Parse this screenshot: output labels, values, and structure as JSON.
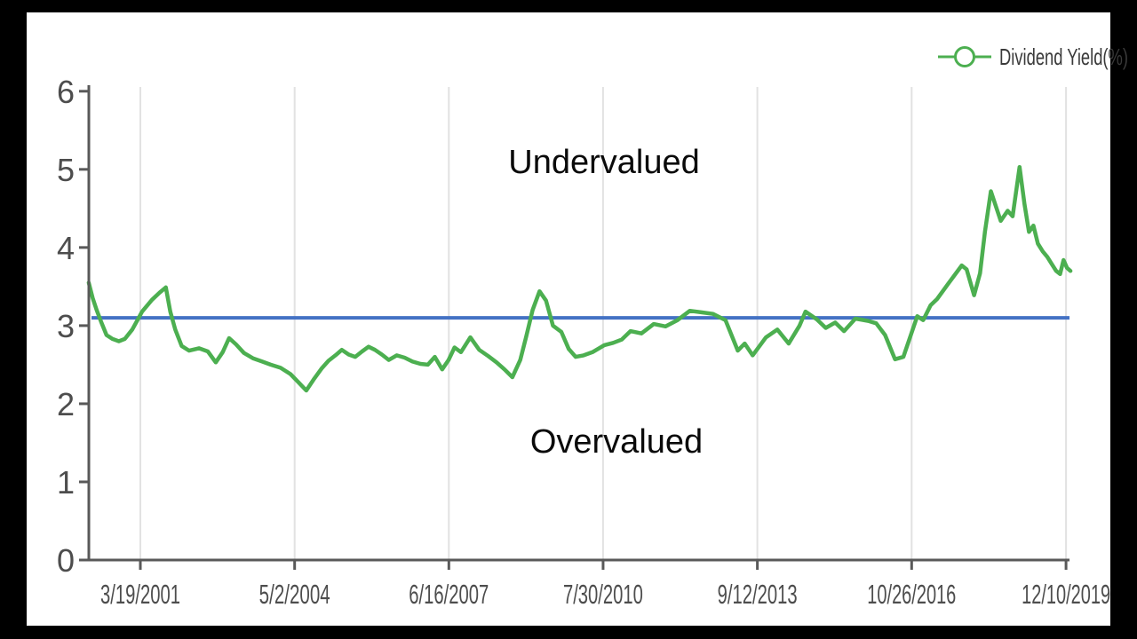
{
  "legend": {
    "label": "Dividend Yield(%)"
  },
  "chart_data": {
    "type": "line",
    "title": "",
    "xlabel": "",
    "ylabel": "",
    "grid": "vertical-only",
    "legend_position": "top-right",
    "annotations": [
      {
        "text": "Undervalued",
        "position": "above-reference-line"
      },
      {
        "text": "Overvalued",
        "position": "below-reference-line"
      }
    ],
    "reference_line": {
      "value": 3.1,
      "color": "#4472c4"
    },
    "y_axis": {
      "ticks": [
        "0",
        "1",
        "2",
        "3",
        "4",
        "5",
        "6"
      ],
      "range": [
        0,
        6
      ]
    },
    "x_axis": {
      "range_years": [
        2000.17,
        2020.03
      ],
      "ticks": [
        {
          "label": "3/19/2001",
          "year": 2001.214
        },
        {
          "label": "5/2/2004",
          "year": 2004.335
        },
        {
          "label": "6/16/2007",
          "year": 2007.455
        },
        {
          "label": "7/30/2010",
          "year": 2010.575
        },
        {
          "label": "9/12/2013",
          "year": 2013.696
        },
        {
          "label": "10/26/2016",
          "year": 2016.817
        },
        {
          "label": "12/10/2019",
          "year": 2019.94
        }
      ]
    },
    "colors": {
      "line": "#4caf50",
      "reference": "#4472c4",
      "axis": "#595959",
      "gridline": "#e2e2e2",
      "tick_text": "#4d4d4d",
      "legend_text": "#3a3a3a",
      "annotation_text": "#0a0a0a",
      "background": "#ffffff",
      "frame": "#000000"
    },
    "series": [
      {
        "name": "Dividend Yield(%)",
        "color": "#4caf50",
        "marker": "open-circle",
        "points": [
          [
            2000.17,
            3.55
          ],
          [
            2000.25,
            3.35
          ],
          [
            2000.33,
            3.2
          ],
          [
            2000.42,
            3.05
          ],
          [
            2000.53,
            2.88
          ],
          [
            2000.65,
            2.83
          ],
          [
            2000.78,
            2.8
          ],
          [
            2000.9,
            2.83
          ],
          [
            2001.05,
            2.95
          ],
          [
            2001.25,
            3.18
          ],
          [
            2001.45,
            3.33
          ],
          [
            2001.6,
            3.42
          ],
          [
            2001.73,
            3.49
          ],
          [
            2001.82,
            3.18
          ],
          [
            2001.92,
            2.95
          ],
          [
            2002.05,
            2.74
          ],
          [
            2002.2,
            2.68
          ],
          [
            2002.4,
            2.71
          ],
          [
            2002.58,
            2.67
          ],
          [
            2002.74,
            2.53
          ],
          [
            2002.88,
            2.66
          ],
          [
            2003.01,
            2.84
          ],
          [
            2003.15,
            2.76
          ],
          [
            2003.31,
            2.65
          ],
          [
            2003.5,
            2.58
          ],
          [
            2003.68,
            2.54
          ],
          [
            2003.85,
            2.5
          ],
          [
            2004.05,
            2.46
          ],
          [
            2004.25,
            2.38
          ],
          [
            2004.42,
            2.27
          ],
          [
            2004.57,
            2.17
          ],
          [
            2004.72,
            2.31
          ],
          [
            2004.88,
            2.45
          ],
          [
            2005.02,
            2.55
          ],
          [
            2005.16,
            2.62
          ],
          [
            2005.29,
            2.69
          ],
          [
            2005.43,
            2.63
          ],
          [
            2005.56,
            2.6
          ],
          [
            2005.7,
            2.67
          ],
          [
            2005.83,
            2.73
          ],
          [
            2005.96,
            2.69
          ],
          [
            2006.1,
            2.63
          ],
          [
            2006.24,
            2.56
          ],
          [
            2006.4,
            2.62
          ],
          [
            2006.56,
            2.59
          ],
          [
            2006.72,
            2.54
          ],
          [
            2006.88,
            2.51
          ],
          [
            2007.03,
            2.5
          ],
          [
            2007.17,
            2.6
          ],
          [
            2007.32,
            2.44
          ],
          [
            2007.45,
            2.56
          ],
          [
            2007.57,
            2.72
          ],
          [
            2007.7,
            2.66
          ],
          [
            2007.89,
            2.85
          ],
          [
            2008.07,
            2.69
          ],
          [
            2008.25,
            2.61
          ],
          [
            2008.42,
            2.53
          ],
          [
            2008.58,
            2.44
          ],
          [
            2008.74,
            2.34
          ],
          [
            2008.9,
            2.56
          ],
          [
            2009.02,
            2.86
          ],
          [
            2009.15,
            3.2
          ],
          [
            2009.29,
            3.44
          ],
          [
            2009.42,
            3.32
          ],
          [
            2009.56,
            3.0
          ],
          [
            2009.73,
            2.92
          ],
          [
            2009.88,
            2.7
          ],
          [
            2010.02,
            2.6
          ],
          [
            2010.18,
            2.62
          ],
          [
            2010.36,
            2.66
          ],
          [
            2010.6,
            2.75
          ],
          [
            2010.78,
            2.78
          ],
          [
            2010.95,
            2.82
          ],
          [
            2011.13,
            2.93
          ],
          [
            2011.35,
            2.9
          ],
          [
            2011.6,
            3.02
          ],
          [
            2011.84,
            2.99
          ],
          [
            2012.08,
            3.07
          ],
          [
            2012.33,
            3.19
          ],
          [
            2012.56,
            3.17
          ],
          [
            2012.8,
            3.15
          ],
          [
            2013.05,
            3.07
          ],
          [
            2013.3,
            2.68
          ],
          [
            2013.44,
            2.77
          ],
          [
            2013.6,
            2.62
          ],
          [
            2013.87,
            2.85
          ],
          [
            2014.1,
            2.95
          ],
          [
            2014.33,
            2.77
          ],
          [
            2014.55,
            3.0
          ],
          [
            2014.67,
            3.18
          ],
          [
            2014.9,
            3.08
          ],
          [
            2015.08,
            2.97
          ],
          [
            2015.27,
            3.04
          ],
          [
            2015.45,
            2.93
          ],
          [
            2015.68,
            3.09
          ],
          [
            2015.94,
            3.06
          ],
          [
            2016.1,
            3.03
          ],
          [
            2016.28,
            2.88
          ],
          [
            2016.48,
            2.57
          ],
          [
            2016.65,
            2.6
          ],
          [
            2016.93,
            3.12
          ],
          [
            2017.05,
            3.07
          ],
          [
            2017.2,
            3.26
          ],
          [
            2017.33,
            3.34
          ],
          [
            2017.55,
            3.53
          ],
          [
            2017.83,
            3.77
          ],
          [
            2017.93,
            3.72
          ],
          [
            2018.08,
            3.39
          ],
          [
            2018.2,
            3.67
          ],
          [
            2018.3,
            4.2
          ],
          [
            2018.42,
            4.72
          ],
          [
            2018.62,
            4.34
          ],
          [
            2018.76,
            4.47
          ],
          [
            2018.86,
            4.4
          ],
          [
            2019.0,
            5.03
          ],
          [
            2019.1,
            4.55
          ],
          [
            2019.19,
            4.2
          ],
          [
            2019.28,
            4.28
          ],
          [
            2019.37,
            4.05
          ],
          [
            2019.47,
            3.95
          ],
          [
            2019.56,
            3.88
          ],
          [
            2019.65,
            3.79
          ],
          [
            2019.74,
            3.7
          ],
          [
            2019.82,
            3.66
          ],
          [
            2019.89,
            3.84
          ],
          [
            2019.96,
            3.74
          ],
          [
            2020.03,
            3.7
          ]
        ]
      }
    ]
  }
}
